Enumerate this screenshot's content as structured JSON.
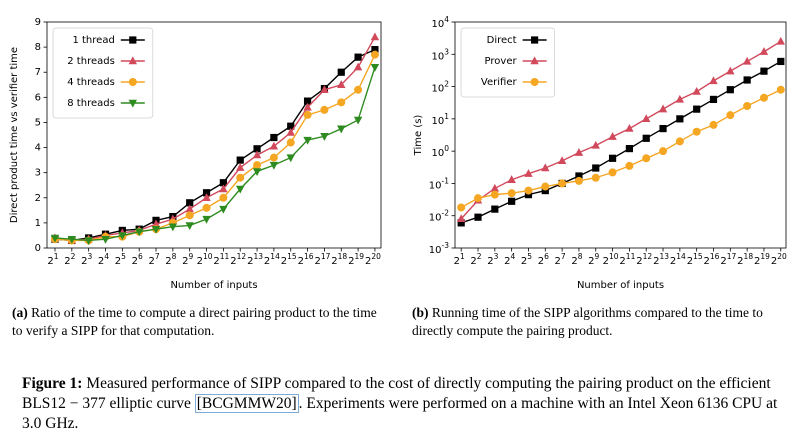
{
  "chart_data": [
    {
      "type": "line",
      "xlabel": "Number of inputs",
      "ylabel": "Direct product time vs verifier time",
      "x": [
        2,
        4,
        8,
        16,
        32,
        64,
        128,
        256,
        512,
        1024,
        2048,
        4096,
        8192,
        16384,
        32768,
        65536,
        131072,
        262144,
        524288,
        1048576
      ],
      "xscale": "log2",
      "xlim": [
        1.44,
        1346000
      ],
      "xticks": [
        {
          "value": 2,
          "label": "2^1"
        },
        {
          "value": 4,
          "label": "2^2"
        },
        {
          "value": 8,
          "label": "2^3"
        },
        {
          "value": 16,
          "label": "2^4"
        },
        {
          "value": 32,
          "label": "2^5"
        },
        {
          "value": 64,
          "label": "2^6"
        },
        {
          "value": 128,
          "label": "2^7"
        },
        {
          "value": 256,
          "label": "2^8"
        },
        {
          "value": 512,
          "label": "2^9"
        },
        {
          "value": 1024,
          "label": "2^10"
        },
        {
          "value": 2048,
          "label": "2^11"
        },
        {
          "value": 4096,
          "label": "2^12"
        },
        {
          "value": 8192,
          "label": "2^13"
        },
        {
          "value": 16384,
          "label": "2^14"
        },
        {
          "value": 32768,
          "label": "2^15"
        },
        {
          "value": 65536,
          "label": "2^16"
        },
        {
          "value": 131072,
          "label": "2^17"
        },
        {
          "value": 262144,
          "label": "2^18"
        },
        {
          "value": 524288,
          "label": "2^19"
        },
        {
          "value": 1048576,
          "label": "2^20"
        }
      ],
      "ylim": [
        0,
        9
      ],
      "yticks": [
        0,
        1,
        2,
        3,
        4,
        5,
        6,
        7,
        8,
        9
      ],
      "legend": "upper left",
      "series": [
        {
          "name": "1 thread",
          "color": "#000000",
          "marker": "s",
          "values": [
            0.35,
            0.3,
            0.4,
            0.55,
            0.7,
            0.75,
            1.1,
            1.25,
            1.8,
            2.2,
            2.6,
            3.5,
            3.95,
            4.4,
            4.85,
            5.85,
            6.35,
            7.0,
            7.6,
            7.9
          ]
        },
        {
          "name": "2 threads",
          "color": "#d1495b",
          "marker": "^",
          "values": [
            0.4,
            0.3,
            0.35,
            0.5,
            0.6,
            0.7,
            0.95,
            1.15,
            1.55,
            2.0,
            2.35,
            3.2,
            3.7,
            4.05,
            4.6,
            5.6,
            6.3,
            6.5,
            7.2,
            8.4
          ]
        },
        {
          "name": "4 threads",
          "color": "#f5a623",
          "marker": "o",
          "values": [
            0.35,
            0.3,
            0.3,
            0.45,
            0.45,
            0.65,
            0.75,
            1.0,
            1.3,
            1.6,
            2.0,
            2.8,
            3.3,
            3.6,
            4.2,
            5.3,
            5.5,
            5.8,
            6.3,
            7.7
          ]
        },
        {
          "name": "8 threads",
          "color": "#2e8b1f",
          "marker": "v",
          "values": [
            0.4,
            0.35,
            0.3,
            0.35,
            0.5,
            0.65,
            0.75,
            0.85,
            0.9,
            1.15,
            1.55,
            2.35,
            3.05,
            3.3,
            3.6,
            4.3,
            4.45,
            4.75,
            5.1,
            7.2
          ]
        }
      ]
    },
    {
      "type": "line",
      "xlabel": "Number of inputs",
      "ylabel": "Time (s)",
      "x": [
        2,
        4,
        8,
        16,
        32,
        64,
        128,
        256,
        512,
        1024,
        2048,
        4096,
        8192,
        16384,
        32768,
        65536,
        131072,
        262144,
        524288,
        1048576
      ],
      "xscale": "log2",
      "xlim": [
        1.55,
        1300000
      ],
      "xticks": [
        {
          "value": 2,
          "label": "2^1"
        },
        {
          "value": 4,
          "label": "2^2"
        },
        {
          "value": 8,
          "label": "2^3"
        },
        {
          "value": 16,
          "label": "2^4"
        },
        {
          "value": 32,
          "label": "2^5"
        },
        {
          "value": 64,
          "label": "2^6"
        },
        {
          "value": 128,
          "label": "2^7"
        },
        {
          "value": 256,
          "label": "2^8"
        },
        {
          "value": 512,
          "label": "2^9"
        },
        {
          "value": 1024,
          "label": "2^10"
        },
        {
          "value": 2048,
          "label": "2^11"
        },
        {
          "value": 4096,
          "label": "2^12"
        },
        {
          "value": 8192,
          "label": "2^13"
        },
        {
          "value": 16384,
          "label": "2^14"
        },
        {
          "value": 32768,
          "label": "2^15"
        },
        {
          "value": 65536,
          "label": "2^16"
        },
        {
          "value": 131072,
          "label": "2^17"
        },
        {
          "value": 262144,
          "label": "2^18"
        },
        {
          "value": 524288,
          "label": "2^19"
        },
        {
          "value": 1048576,
          "label": "2^20"
        }
      ],
      "yscale": "log",
      "ylim": [
        0.001,
        10000
      ],
      "yticks": [
        {
          "value": 0.001,
          "label": "10^-3"
        },
        {
          "value": 0.01,
          "label": "10^-2"
        },
        {
          "value": 0.1,
          "label": "10^-1"
        },
        {
          "value": 1,
          "label": "10^0"
        },
        {
          "value": 10,
          "label": "10^1"
        },
        {
          "value": 100,
          "label": "10^2"
        },
        {
          "value": 1000,
          "label": "10^3"
        },
        {
          "value": 10000,
          "label": "10^4"
        }
      ],
      "legend": "upper left",
      "series": [
        {
          "name": "Direct",
          "color": "#000000",
          "marker": "s",
          "values": [
            0.006,
            0.009,
            0.016,
            0.028,
            0.045,
            0.06,
            0.1,
            0.17,
            0.3,
            0.6,
            1.2,
            2.5,
            5,
            10,
            20,
            40,
            80,
            160,
            300,
            600
          ]
        },
        {
          "name": "Prover",
          "color": "#d1495b",
          "marker": "^",
          "values": [
            0.008,
            0.03,
            0.07,
            0.13,
            0.2,
            0.3,
            0.5,
            0.9,
            1.5,
            2.8,
            5,
            10,
            20,
            40,
            70,
            150,
            300,
            600,
            1200,
            2500
          ]
        },
        {
          "name": "Verifier",
          "color": "#f5a623",
          "marker": "o",
          "values": [
            0.018,
            0.035,
            0.045,
            0.05,
            0.06,
            0.08,
            0.1,
            0.12,
            0.15,
            0.22,
            0.35,
            0.6,
            1,
            2,
            4,
            6.5,
            13,
            25,
            45,
            80
          ]
        }
      ]
    }
  ],
  "subcaptions": [
    {
      "label": "(a)",
      "text": "Ratio of the time to compute a direct pairing product to the time to verify a SIPP for that computation."
    },
    {
      "label": "(b)",
      "text": "Running time of the SIPP algorithms compared to the time to directly compute the pairing product."
    }
  ],
  "figure_caption": {
    "label": "Figure 1:",
    "text_before": "Measured performance of SIPP compared to the cost of directly computing the pairing product on the efficient BLS12 − 377 elliptic curve ",
    "citation": "[BCGMMW20]",
    "text_after": ". Experiments were performed on a machine with an Intel Xeon 6136 CPU at 3.0 GHz."
  }
}
